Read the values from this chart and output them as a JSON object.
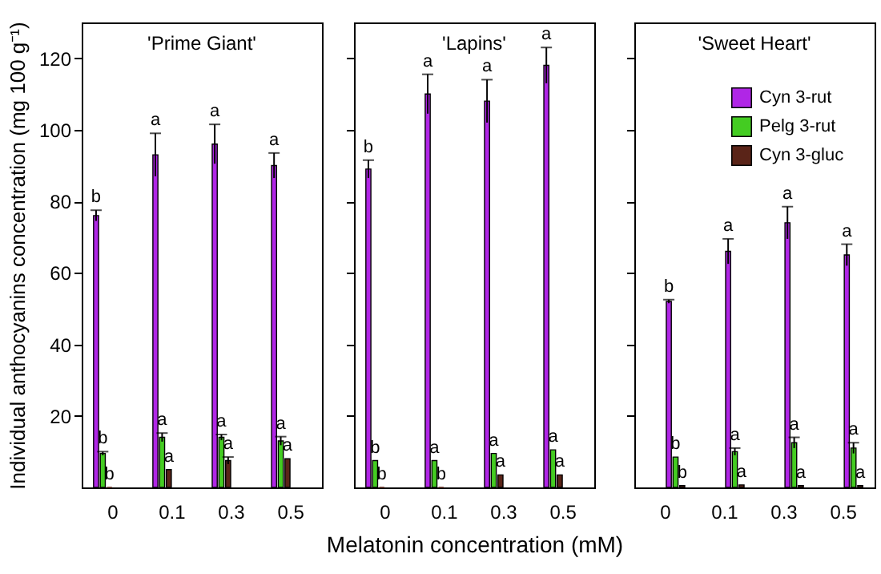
{
  "chart_data": [
    {
      "type": "bar",
      "title": "'Prime Giant'",
      "ylabel": "Individual anthocyanins concentration (mg 100 g⁻¹)",
      "categories": [
        "0",
        "0.1",
        "0.3",
        "0.5"
      ],
      "ylim": [
        0,
        130
      ],
      "yticks": [
        20,
        40,
        60,
        80,
        100,
        120
      ],
      "grid": false,
      "series": [
        {
          "color": "#b026e6",
          "values": [
            76,
            93,
            96,
            90
          ],
          "errors": [
            1.5,
            6,
            5.5,
            3.5
          ],
          "value_labels": [
            "b",
            "a",
            "a",
            "a"
          ]
        },
        {
          "color": "#44cc22",
          "values": [
            9.5,
            14,
            14,
            13
          ],
          "errors": [
            0.5,
            1.2,
            0.8,
            1.2
          ],
          "value_labels": [
            "b",
            "a",
            "a",
            "a"
          ]
        },
        {
          "color": "#5a2418",
          "values": [
            0,
            5,
            7.5,
            8
          ],
          "errors": [
            null,
            null,
            1,
            null
          ],
          "value_labels": [
            "b",
            "a",
            "a",
            "a"
          ]
        }
      ]
    },
    {
      "type": "bar",
      "title": "'Lapins'",
      "xlabel": "Melatonin concentration (mM)",
      "categories": [
        "0",
        "0.1",
        "0.3",
        "0.5"
      ],
      "ylim": [
        0,
        130
      ],
      "yticks": [
        20,
        40,
        60,
        80,
        100,
        120
      ],
      "grid": false,
      "tick_labels": "x",
      "series": [
        {
          "color": "#b026e6",
          "values": [
            89,
            110,
            108,
            118
          ],
          "errors": [
            2.5,
            5.5,
            6,
            5
          ],
          "value_labels": [
            "b",
            "a",
            "a",
            "a"
          ]
        },
        {
          "color": "#44cc22",
          "values": [
            7.5,
            7.5,
            9.5,
            10.5
          ],
          "errors": [
            null,
            null,
            null,
            null
          ],
          "value_labels": [
            "b",
            "a",
            "a",
            "a"
          ]
        },
        {
          "color": "#5a2418",
          "values": [
            0,
            0,
            3.5,
            3.5
          ],
          "errors": [
            null,
            null,
            null,
            null
          ],
          "value_labels": [
            "b",
            "b",
            "a",
            "a"
          ]
        }
      ]
    },
    {
      "type": "bar",
      "title": "'Sweet Heart'",
      "categories": [
        "0",
        "0.1",
        "0.3",
        "0.5"
      ],
      "ylim": [
        0,
        130
      ],
      "yticks": [
        20,
        40,
        60,
        80,
        100,
        120
      ],
      "grid": false,
      "tick_labels": "x",
      "legend": "top right",
      "series": [
        {
          "name": "Cyn 3-rut",
          "color": "#b026e6",
          "values": [
            52,
            66,
            74,
            65
          ],
          "errors": [
            0.5,
            3.5,
            4.5,
            3
          ],
          "value_labels": [
            "b",
            "a",
            "a",
            "a"
          ]
        },
        {
          "name": "Pelg 3-rut",
          "color": "#44cc22",
          "values": [
            8.5,
            10,
            12.5,
            11
          ],
          "errors": [
            null,
            1,
            1.5,
            1.5
          ],
          "value_labels": [
            "b",
            "a",
            "a",
            "a"
          ]
        },
        {
          "name": "Cyn 3-gluc",
          "color": "#5a2418",
          "values": [
            0.5,
            0.7,
            0.5,
            0.5
          ],
          "errors": [
            null,
            null,
            null,
            null
          ],
          "value_labels": [
            "b",
            "a",
            "a",
            "a"
          ]
        }
      ]
    }
  ]
}
